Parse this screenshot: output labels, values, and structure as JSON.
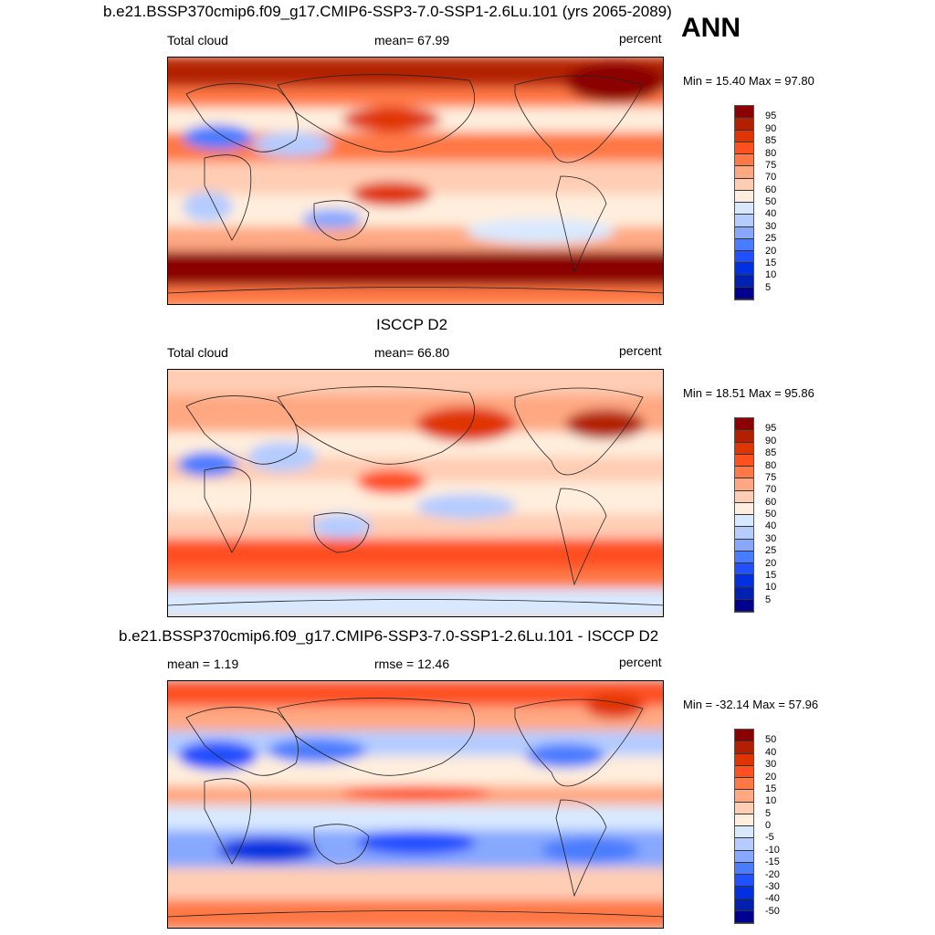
{
  "figure_label": "ANN",
  "colors": [
    "#8b0000",
    "#b32000",
    "#e03500",
    "#ff5020",
    "#ff7845",
    "#ffa882",
    "#ffcdb4",
    "#ffeedd",
    "#d8e9ff",
    "#b4ccff",
    "#88a8ff",
    "#4a7cff",
    "#2050ff",
    "#0030e0",
    "#0020b0",
    "#000090"
  ],
  "panels": [
    {
      "title": "b.e21.BSSP370cmip6.f09_g17.CMIP6-SSP3-7.0-SSP1-2.6Lu.101 (yrs 2065-2089)",
      "left": "Total cloud",
      "center": "mean=  67.99",
      "right": "percent",
      "minmax": "Min =  15.40 Max =  97.80",
      "levels": [
        "95",
        "90",
        "85",
        "80",
        "75",
        "70",
        "60",
        "50",
        "40",
        "30",
        "25",
        "20",
        "15",
        "10",
        "5"
      ]
    },
    {
      "title": "ISCCP D2",
      "left": "Total cloud",
      "center": "mean=  66.80",
      "right": "percent",
      "minmax": "Min =  18.51 Max =  95.86",
      "levels": [
        "95",
        "90",
        "85",
        "80",
        "75",
        "70",
        "60",
        "50",
        "40",
        "30",
        "25",
        "20",
        "15",
        "10",
        "5"
      ]
    },
    {
      "title": "b.e21.BSSP370cmip6.f09_g17.CMIP6-SSP3-7.0-SSP1-2.6Lu.101 - ISCCP D2",
      "left": "mean =   1.19",
      "center": "rmse =  12.46",
      "right": "percent",
      "minmax": "Min = -32.14 Max =  57.96",
      "levels": [
        "50",
        "40",
        "30",
        "20",
        "15",
        "10",
        "5",
        "0",
        "-5",
        "-10",
        "-15",
        "-20",
        "-30",
        "-40",
        "-50"
      ]
    }
  ]
}
